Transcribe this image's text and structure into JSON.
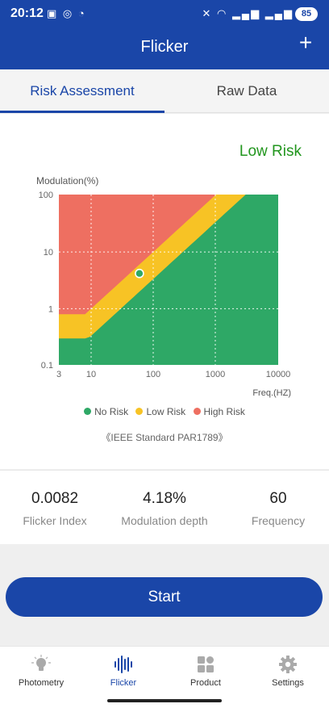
{
  "status_bar": {
    "time": "20:12",
    "left_icons": [
      "screen-record-icon",
      "whatsapp-icon",
      "viber-icon"
    ],
    "right_icons": [
      "mute-icon",
      "wifi-icon",
      "signal-icon",
      "signal-icon"
    ],
    "battery": "85"
  },
  "app_bar": {
    "title": "Flicker",
    "add_label": "+"
  },
  "tabs": [
    {
      "label": "Risk Assessment",
      "active": true
    },
    {
      "label": "Raw Data",
      "active": false
    }
  ],
  "assessment": {
    "result": "Low Risk",
    "result_color": "#22961e"
  },
  "chart_data": {
    "type": "scatter",
    "ylabel": "Modulation(%)",
    "xlabel": "Freq.(HZ)",
    "x_scale": "log",
    "y_scale": "log",
    "x_ticks": [
      "3",
      "10",
      "100",
      "1000",
      "10000"
    ],
    "y_ticks": [
      "100",
      "10",
      "1",
      "0.1"
    ],
    "xlim": [
      3,
      10000
    ],
    "ylim": [
      0.1,
      100
    ],
    "grid": true,
    "regions": [
      {
        "name": "No Risk",
        "color": "#2ea866"
      },
      {
        "name": "Low Risk",
        "color": "#f7c325"
      },
      {
        "name": "High Risk",
        "color": "#ee6f61"
      }
    ],
    "point": {
      "x": 60,
      "y": 4.18
    }
  },
  "legend": [
    {
      "label": "No Risk",
      "color": "#2ea866"
    },
    {
      "label": "Low Risk",
      "color": "#f7c325"
    },
    {
      "label": "High Risk",
      "color": "#ee6f61"
    }
  ],
  "standard": "《IEEE Standard PAR1789》",
  "stats": [
    {
      "value": "0.0082",
      "label": "Flicker Index"
    },
    {
      "value": "4.18%",
      "label": "Modulation depth"
    },
    {
      "value": "60",
      "label": "Frequency"
    }
  ],
  "start_label": "Start",
  "nav": [
    {
      "label": "Photometry",
      "icon": "bulb-icon",
      "active": false
    },
    {
      "label": "Flicker",
      "icon": "waveform-icon",
      "active": true
    },
    {
      "label": "Product",
      "icon": "grid-icon",
      "active": false
    },
    {
      "label": "Settings",
      "icon": "gear-icon",
      "active": false
    }
  ]
}
